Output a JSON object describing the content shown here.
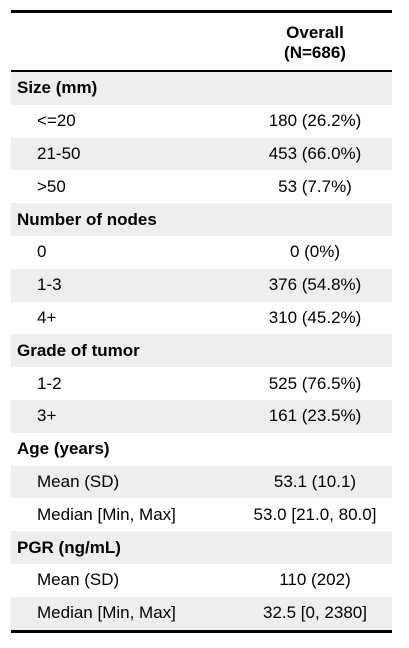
{
  "table": {
    "header": {
      "col1": "",
      "col2_line1": "Overall",
      "col2_line2": "(N=686)"
    },
    "rows": [
      {
        "label": "Size (mm)",
        "value": ""
      },
      {
        "label": "<=20",
        "value": "180 (26.2%)"
      },
      {
        "label": "21-50",
        "value": "453 (66.0%)"
      },
      {
        "label": ">50",
        "value": "53 (7.7%)"
      },
      {
        "label": "Number of nodes",
        "value": ""
      },
      {
        "label": "0",
        "value": "0 (0%)"
      },
      {
        "label": "1-3",
        "value": "376 (54.8%)"
      },
      {
        "label": "4+",
        "value": "310 (45.2%)"
      },
      {
        "label": "Grade of tumor",
        "value": ""
      },
      {
        "label": "1-2",
        "value": "525 (76.5%)"
      },
      {
        "label": "3+",
        "value": "161 (23.5%)"
      },
      {
        "label": "Age (years)",
        "value": ""
      },
      {
        "label": "Mean (SD)",
        "value": "53.1 (10.1)"
      },
      {
        "label": "Median [Min, Max]",
        "value": "53.0 [21.0, 80.0]"
      },
      {
        "label": "PGR (ng/mL)",
        "value": ""
      },
      {
        "label": "Mean (SD)",
        "value": "110 (202)"
      },
      {
        "label": "Median [Min, Max]",
        "value": "32.5 [0, 2380]"
      }
    ]
  }
}
